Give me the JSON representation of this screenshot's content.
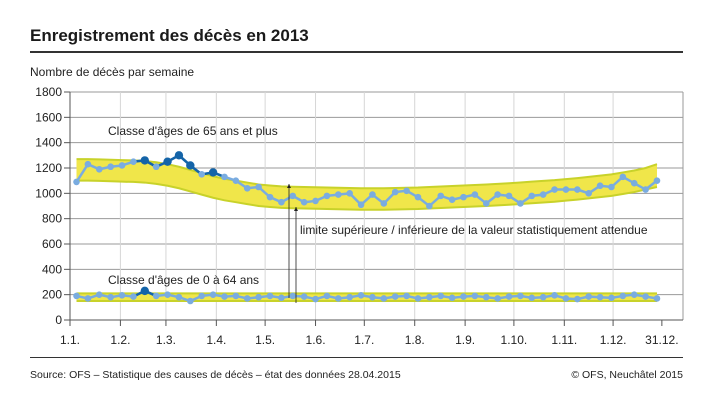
{
  "chart_data": {
    "type": "line",
    "title": "Enregistrement des décès en 2013",
    "ylabel": "Nombre de décès par semaine",
    "xlabel": "",
    "ylim": [
      0,
      1800
    ],
    "yticks": [
      0,
      200,
      400,
      600,
      800,
      1000,
      1200,
      1400,
      1600,
      1800
    ],
    "xticks": [
      {
        "label": "1.1.",
        "day": 0
      },
      {
        "label": "1.2.",
        "day": 31
      },
      {
        "label": "1.3.",
        "day": 59
      },
      {
        "label": "1.4.",
        "day": 90
      },
      {
        "label": "1.5.",
        "day": 120
      },
      {
        "label": "1.6.",
        "day": 151
      },
      {
        "label": "1.7.",
        "day": 181
      },
      {
        "label": "1.8.",
        "day": 212
      },
      {
        "label": "1.9.",
        "day": 243
      },
      {
        "label": "1.10.",
        "day": 273
      },
      {
        "label": "1.11.",
        "day": 304
      },
      {
        "label": "1.12.",
        "day": 334
      },
      {
        "label": "31.12.",
        "day": 364
      }
    ],
    "xlim_days": [
      0,
      377
    ],
    "first_week_day": 4,
    "grid": true,
    "annotation": "limite supérieure / inférieure de la valeur statistiquement attendue",
    "colors": {
      "points": "#7aace0",
      "highlight": "#1464a8",
      "band": "#f0e64a",
      "band_edge": "#c8d22a"
    },
    "series": [
      {
        "name": "Classe d'âges de 65 ans et plus",
        "values": [
          1090,
          1230,
          1190,
          1210,
          1220,
          1250,
          1260,
          1210,
          1250,
          1300,
          1220,
          1150,
          1165,
          1130,
          1100,
          1040,
          1050,
          970,
          930,
          980,
          930,
          940,
          980,
          990,
          1000,
          910,
          990,
          920,
          1010,
          1020,
          970,
          900,
          980,
          950,
          970,
          990,
          920,
          990,
          980,
          920,
          980,
          990,
          1030,
          1030,
          1030,
          1000,
          1060,
          1050,
          1130,
          1080,
          1030,
          1100
        ],
        "highlight": [
          6,
          8,
          9,
          10,
          12
        ],
        "upper": [
          1270,
          1270,
          1268,
          1265,
          1262,
          1260,
          1255,
          1245,
          1230,
          1210,
          1185,
          1160,
          1135,
          1115,
          1100,
          1085,
          1070,
          1062,
          1055,
          1052,
          1050,
          1048,
          1046,
          1044,
          1042,
          1040,
          1040,
          1040,
          1042,
          1044,
          1046,
          1050,
          1054,
          1058,
          1062,
          1066,
          1070,
          1075,
          1080,
          1086,
          1092,
          1098,
          1104,
          1112,
          1120,
          1130,
          1140,
          1150,
          1165,
          1180,
          1200,
          1230
        ],
        "lower": [
          1100,
          1100,
          1098,
          1095,
          1092,
          1090,
          1085,
          1075,
          1060,
          1040,
          1015,
          990,
          965,
          945,
          930,
          915,
          900,
          892,
          885,
          882,
          880,
          878,
          876,
          874,
          872,
          870,
          870,
          870,
          872,
          874,
          876,
          880,
          884,
          888,
          892,
          896,
          900,
          905,
          910,
          916,
          922,
          928,
          934,
          942,
          950,
          960,
          970,
          980,
          995,
          1010,
          1030,
          1050
        ]
      },
      {
        "name": "Classe d'âges de 0 à 64 ans",
        "values": [
          190,
          170,
          200,
          180,
          195,
          185,
          230,
          190,
          200,
          180,
          150,
          190,
          200,
          185,
          190,
          170,
          180,
          190,
          175,
          190,
          185,
          165,
          190,
          170,
          180,
          195,
          180,
          170,
          185,
          190,
          170,
          180,
          190,
          175,
          185,
          190,
          180,
          170,
          185,
          190,
          175,
          180,
          195,
          170,
          165,
          185,
          180,
          175,
          190,
          200,
          185,
          170
        ],
        "highlight": [
          6
        ],
        "upper": [
          210,
          210,
          210,
          210,
          210,
          210,
          210,
          210,
          210,
          210,
          210,
          210,
          210,
          210,
          210,
          210,
          210,
          210,
          210,
          210,
          210,
          210,
          210,
          210,
          210,
          210,
          210,
          210,
          210,
          210,
          210,
          210,
          210,
          210,
          210,
          210,
          210,
          210,
          210,
          210,
          210,
          210,
          210,
          210,
          210,
          210,
          210,
          210,
          210,
          210,
          210,
          210
        ],
        "lower": [
          150,
          150,
          150,
          150,
          150,
          150,
          150,
          150,
          150,
          150,
          150,
          150,
          150,
          150,
          150,
          150,
          150,
          150,
          150,
          150,
          150,
          150,
          150,
          150,
          150,
          150,
          150,
          150,
          150,
          150,
          150,
          150,
          150,
          150,
          150,
          150,
          150,
          150,
          150,
          150,
          150,
          150,
          150,
          150,
          150,
          150,
          150,
          150,
          150,
          150,
          150,
          150
        ]
      }
    ]
  },
  "footer": {
    "source": "Source: OFS – Statistique des causes de décès – état des données 28.04.2015",
    "copyright": "© OFS, Neuchâtel 2015"
  }
}
